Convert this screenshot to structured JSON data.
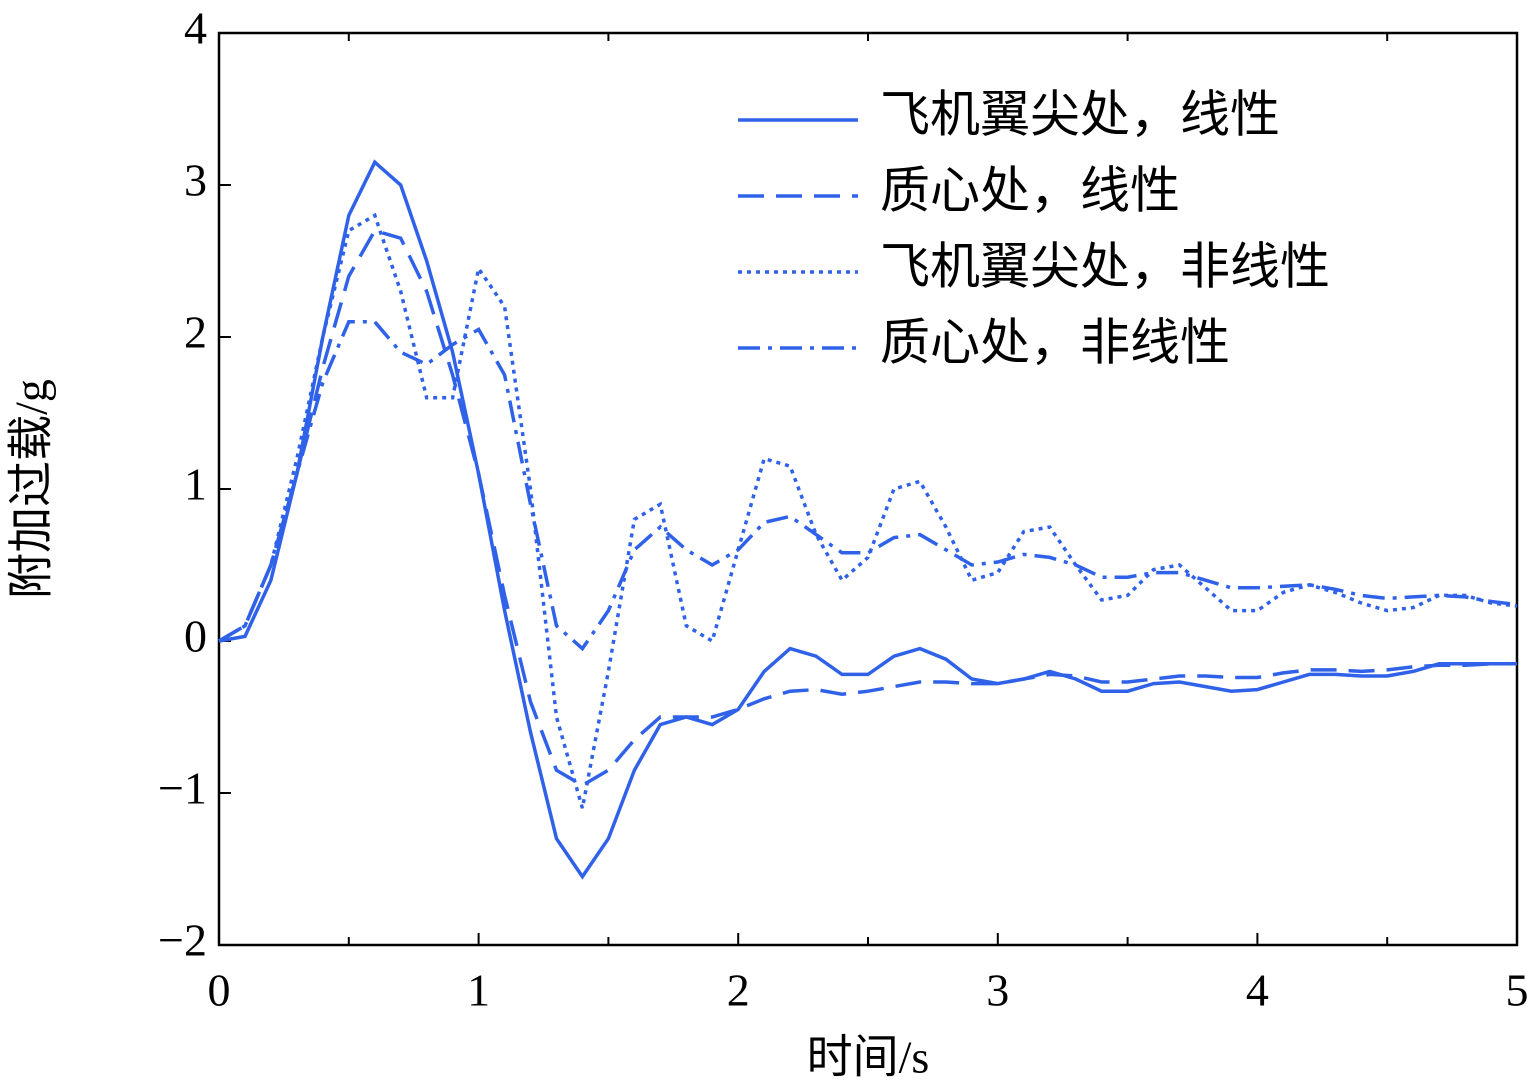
{
  "chart_data": {
    "type": "line",
    "xlabel": "时间/s",
    "ylabel": "附加过载/g",
    "x": [
      0,
      0.1,
      0.2,
      0.3,
      0.4,
      0.5,
      0.6,
      0.7,
      0.8,
      0.9,
      1.0,
      1.1,
      1.2,
      1.3,
      1.4,
      1.5,
      1.6,
      1.7,
      1.8,
      1.9,
      2.0,
      2.1,
      2.2,
      2.3,
      2.4,
      2.5,
      2.6,
      2.7,
      2.8,
      2.9,
      3.0,
      3.1,
      3.2,
      3.3,
      3.4,
      3.5,
      3.6,
      3.7,
      3.8,
      3.9,
      4.0,
      4.1,
      4.2,
      4.3,
      4.4,
      4.5,
      4.6,
      4.7,
      4.8,
      4.9,
      5.0
    ],
    "series": [
      {
        "name": "飞机翼尖处，线性",
        "color": "#2f62e8",
        "linestyle": "solid",
        "values": [
          0,
          0.03,
          0.4,
          1.1,
          2.0,
          2.8,
          3.15,
          3.0,
          2.5,
          1.9,
          1.1,
          0.2,
          -0.6,
          -1.3,
          -1.55,
          -1.3,
          -0.85,
          -0.55,
          -0.5,
          -0.55,
          -0.45,
          -0.2,
          -0.05,
          -0.1,
          -0.22,
          -0.22,
          -0.1,
          -0.05,
          -0.12,
          -0.25,
          -0.28,
          -0.25,
          -0.2,
          -0.25,
          -0.33,
          -0.33,
          -0.28,
          -0.27,
          -0.3,
          -0.33,
          -0.32,
          -0.27,
          -0.22,
          -0.22,
          -0.23,
          -0.23,
          -0.2,
          -0.15,
          -0.15,
          -0.15,
          -0.15
        ]
      },
      {
        "name": "质心处，线性",
        "color": "#2f62e8",
        "linestyle": "dashed",
        "values": [
          0,
          0.1,
          0.5,
          1.1,
          1.8,
          2.4,
          2.7,
          2.65,
          2.3,
          1.75,
          1.1,
          0.3,
          -0.4,
          -0.85,
          -0.95,
          -0.85,
          -0.65,
          -0.5,
          -0.5,
          -0.5,
          -0.45,
          -0.38,
          -0.33,
          -0.32,
          -0.35,
          -0.33,
          -0.3,
          -0.27,
          -0.27,
          -0.28,
          -0.28,
          -0.25,
          -0.22,
          -0.23,
          -0.27,
          -0.27,
          -0.25,
          -0.23,
          -0.23,
          -0.24,
          -0.24,
          -0.21,
          -0.19,
          -0.19,
          -0.2,
          -0.19,
          -0.17,
          -0.16,
          -0.16,
          -0.15,
          -0.15
        ]
      },
      {
        "name": "飞机翼尖处，非线性",
        "color": "#2f62e8",
        "linestyle": "dotted",
        "values": [
          0,
          0.1,
          0.5,
          1.2,
          2.0,
          2.7,
          2.8,
          2.3,
          1.6,
          1.6,
          2.45,
          2.2,
          1.0,
          -0.5,
          -1.1,
          -0.2,
          0.8,
          0.9,
          0.1,
          0.0,
          0.6,
          1.2,
          1.15,
          0.7,
          0.4,
          0.55,
          1.0,
          1.05,
          0.75,
          0.4,
          0.45,
          0.72,
          0.75,
          0.5,
          0.27,
          0.3,
          0.47,
          0.5,
          0.35,
          0.2,
          0.2,
          0.32,
          0.37,
          0.32,
          0.25,
          0.2,
          0.22,
          0.3,
          0.3,
          0.25,
          0.23
        ]
      },
      {
        "name": "质心处，非线性",
        "color": "#2f62e8",
        "linestyle": "dashdot",
        "values": [
          0,
          0.1,
          0.5,
          1.1,
          1.7,
          2.1,
          2.1,
          1.9,
          1.82,
          1.95,
          2.05,
          1.75,
          0.9,
          0.1,
          -0.05,
          0.2,
          0.6,
          0.75,
          0.6,
          0.5,
          0.6,
          0.78,
          0.82,
          0.7,
          0.58,
          0.58,
          0.68,
          0.7,
          0.6,
          0.5,
          0.52,
          0.57,
          0.55,
          0.5,
          0.42,
          0.42,
          0.45,
          0.45,
          0.4,
          0.35,
          0.35,
          0.36,
          0.37,
          0.34,
          0.3,
          0.28,
          0.29,
          0.3,
          0.29,
          0.26,
          0.24
        ]
      }
    ],
    "xlim": [
      0,
      5
    ],
    "xticks": [
      0,
      1,
      2,
      3,
      4,
      5
    ],
    "x_minor_ticks": [
      0.5,
      1.5,
      2.5,
      3.5,
      4.5
    ],
    "ylim": [
      -2,
      4
    ],
    "yticks": [
      {
        "value": -2,
        "label": "−2"
      },
      {
        "value": -1,
        "label": "−1"
      },
      0,
      1,
      2,
      3,
      4
    ],
    "legend": "upper right",
    "grid": false
  }
}
